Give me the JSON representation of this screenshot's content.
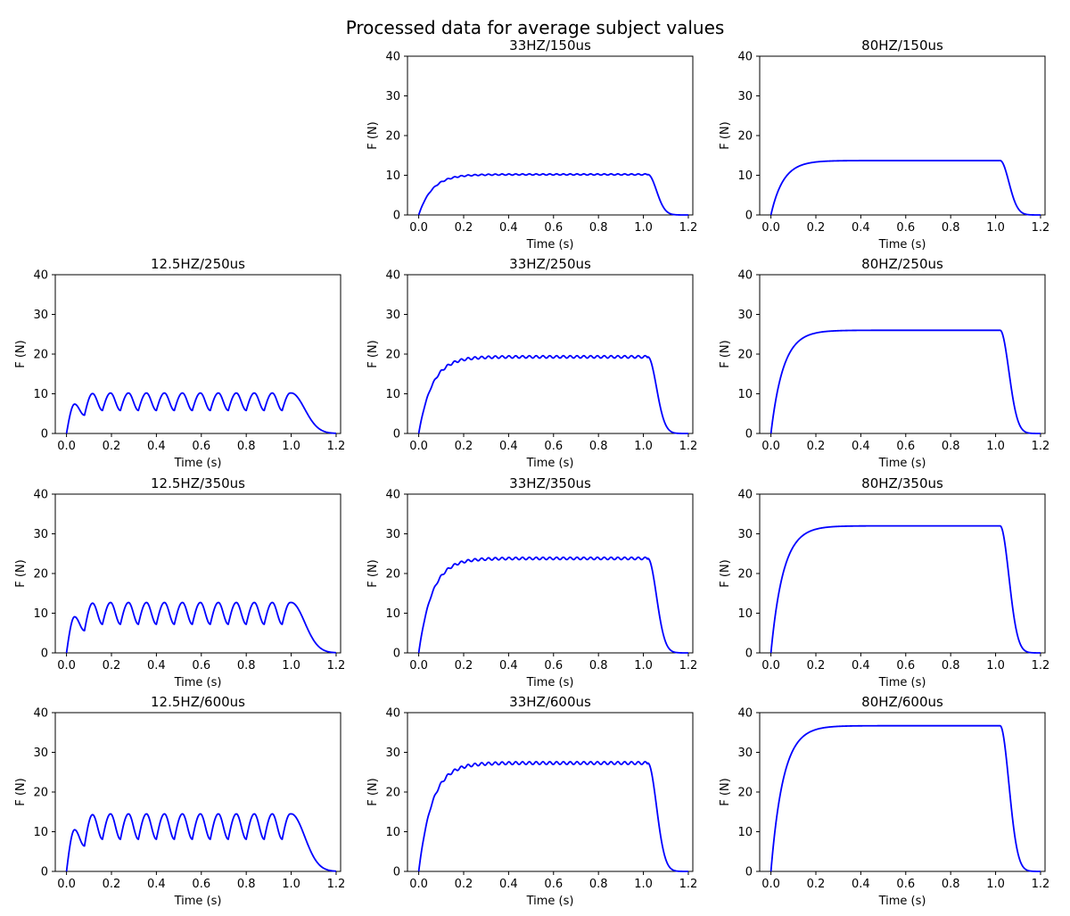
{
  "figure_title": "Processed data for average subject values",
  "line_color": "#0000ff",
  "chart_data": [
    {
      "type": "line",
      "title": "33HZ/150us",
      "xlabel": "Time (s)",
      "ylabel": "F (N)",
      "xlim": [
        -0.05,
        1.22
      ],
      "ylim": [
        0,
        40
      ],
      "xticks": [
        0.0,
        0.2,
        0.4,
        0.6,
        0.8,
        1.0,
        1.2
      ],
      "yticks": [
        0,
        10,
        20,
        30,
        40
      ],
      "freq_hz": 33,
      "plateau": 10.2,
      "ripple": 0.15,
      "tau": 0.06,
      "grid": false
    },
    {
      "type": "line",
      "title": "80HZ/150us",
      "xlabel": "Time (s)",
      "ylabel": "F (N)",
      "xlim": [
        -0.05,
        1.22
      ],
      "ylim": [
        0,
        40
      ],
      "xticks": [
        0.0,
        0.2,
        0.4,
        0.6,
        0.8,
        1.0,
        1.2
      ],
      "yticks": [
        0,
        10,
        20,
        30,
        40
      ],
      "freq_hz": 80,
      "plateau": 13.7,
      "ripple": 0.0,
      "tau": 0.055,
      "grid": false
    },
    {
      "type": "line",
      "title": "12.5HZ/250us",
      "xlabel": "Time (s)",
      "ylabel": "F (N)",
      "xlim": [
        -0.05,
        1.22
      ],
      "ylim": [
        0,
        40
      ],
      "xticks": [
        0.0,
        0.2,
        0.4,
        0.6,
        0.8,
        1.0,
        1.2
      ],
      "yticks": [
        0,
        10,
        20,
        30,
        40
      ],
      "freq_hz": 12.5,
      "peak": 10.2,
      "trough": 5.8,
      "first_peak": 7.4,
      "first_trough": 4.6,
      "grid": false
    },
    {
      "type": "line",
      "title": "33HZ/250us",
      "xlabel": "Time (s)",
      "ylabel": "F (N)",
      "xlim": [
        -0.05,
        1.22
      ],
      "ylim": [
        0,
        40
      ],
      "xticks": [
        0.0,
        0.2,
        0.4,
        0.6,
        0.8,
        1.0,
        1.2
      ],
      "yticks": [
        0,
        10,
        20,
        30,
        40
      ],
      "freq_hz": 33,
      "plateau": 19.3,
      "ripple": 0.3,
      "tau": 0.06,
      "grid": false
    },
    {
      "type": "line",
      "title": "80HZ/250us",
      "xlabel": "Time (s)",
      "ylabel": "F (N)",
      "xlim": [
        -0.05,
        1.22
      ],
      "ylim": [
        0,
        40
      ],
      "xticks": [
        0.0,
        0.2,
        0.4,
        0.6,
        0.8,
        1.0,
        1.2
      ],
      "yticks": [
        0,
        10,
        20,
        30,
        40
      ],
      "freq_hz": 80,
      "plateau": 26.0,
      "ripple": 0.0,
      "tau": 0.055,
      "grid": false
    },
    {
      "type": "line",
      "title": "12.5HZ/350us",
      "xlabel": "Time (s)",
      "ylabel": "F (N)",
      "xlim": [
        -0.05,
        1.22
      ],
      "ylim": [
        0,
        40
      ],
      "xticks": [
        0.0,
        0.2,
        0.4,
        0.6,
        0.8,
        1.0,
        1.2
      ],
      "yticks": [
        0,
        10,
        20,
        30,
        40
      ],
      "freq_hz": 12.5,
      "peak": 12.7,
      "trough": 7.2,
      "first_peak": 9.1,
      "first_trough": 5.6,
      "grid": false
    },
    {
      "type": "line",
      "title": "33HZ/350us",
      "xlabel": "Time (s)",
      "ylabel": "F (N)",
      "xlim": [
        -0.05,
        1.22
      ],
      "ylim": [
        0,
        40
      ],
      "xticks": [
        0.0,
        0.2,
        0.4,
        0.6,
        0.8,
        1.0,
        1.2
      ],
      "yticks": [
        0,
        10,
        20,
        30,
        40
      ],
      "freq_hz": 33,
      "plateau": 23.8,
      "ripple": 0.3,
      "tau": 0.06,
      "grid": false
    },
    {
      "type": "line",
      "title": "80HZ/350us",
      "xlabel": "Time (s)",
      "ylabel": "F (N)",
      "xlim": [
        -0.05,
        1.22
      ],
      "ylim": [
        0,
        40
      ],
      "xticks": [
        0.0,
        0.2,
        0.4,
        0.6,
        0.8,
        1.0,
        1.2
      ],
      "yticks": [
        0,
        10,
        20,
        30,
        40
      ],
      "freq_hz": 80,
      "plateau": 32.0,
      "ripple": 0.0,
      "tau": 0.055,
      "grid": false
    },
    {
      "type": "line",
      "title": "12.5HZ/600us",
      "xlabel": "Time (s)",
      "ylabel": "F (N)",
      "xlim": [
        -0.05,
        1.22
      ],
      "ylim": [
        0,
        40
      ],
      "xticks": [
        0.0,
        0.2,
        0.4,
        0.6,
        0.8,
        1.0,
        1.2
      ],
      "yticks": [
        0,
        10,
        20,
        30,
        40
      ],
      "freq_hz": 12.5,
      "peak": 14.5,
      "trough": 8.1,
      "first_peak": 10.5,
      "first_trough": 6.4,
      "grid": false
    },
    {
      "type": "line",
      "title": "33HZ/600us",
      "xlabel": "Time (s)",
      "ylabel": "F (N)",
      "xlim": [
        -0.05,
        1.22
      ],
      "ylim": [
        0,
        40
      ],
      "xticks": [
        0.0,
        0.2,
        0.4,
        0.6,
        0.8,
        1.0,
        1.2
      ],
      "yticks": [
        0,
        10,
        20,
        30,
        40
      ],
      "freq_hz": 33,
      "plateau": 27.3,
      "ripple": 0.35,
      "tau": 0.06,
      "grid": false
    },
    {
      "type": "line",
      "title": "80HZ/600us",
      "xlabel": "Time (s)",
      "ylabel": "F (N)",
      "xlim": [
        -0.05,
        1.22
      ],
      "ylim": [
        0,
        40
      ],
      "xticks": [
        0.0,
        0.2,
        0.4,
        0.6,
        0.8,
        1.0,
        1.2
      ],
      "yticks": [
        0,
        10,
        20,
        30,
        40
      ],
      "freq_hz": 80,
      "plateau": 36.7,
      "ripple": 0.0,
      "tau": 0.055,
      "grid": false
    }
  ]
}
